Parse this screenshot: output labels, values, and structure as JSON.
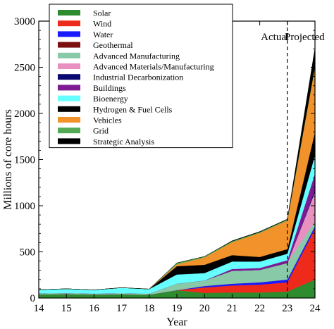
{
  "chart_data": {
    "type": "area",
    "stacked": true,
    "xlabel": "Year",
    "ylabel": "Millions of core hours",
    "x": [
      14,
      15,
      16,
      17,
      18,
      19,
      20,
      21,
      22,
      23,
      24
    ],
    "x_tick_labels": [
      "14",
      "15",
      "16",
      "17",
      "18",
      "19",
      "20",
      "21",
      "22",
      "23",
      "24"
    ],
    "ylim": [
      0,
      3000
    ],
    "xlim": [
      14,
      24
    ],
    "y_ticks": [
      0,
      500,
      1000,
      1500,
      2000,
      2500,
      3000
    ],
    "y_tick_labels": [
      "0",
      "500",
      "1000",
      "1500",
      "2000",
      "2500",
      "3000"
    ],
    "annotations": [
      {
        "text": "Actual",
        "x": 22.55
      },
      {
        "text": "Projected",
        "x": 23.55
      }
    ],
    "divider_x": 23,
    "legend_position": "top-left",
    "series": [
      {
        "name": "Solar",
        "color": "#2e8b2e",
        "values": [
          40,
          42,
          38,
          40,
          35,
          85,
          55,
          60,
          60,
          70,
          200
        ]
      },
      {
        "name": "Wind",
        "color": "#ee2a1a",
        "values": [
          0,
          0,
          0,
          0,
          0,
          0,
          60,
          75,
          85,
          100,
          550
        ]
      },
      {
        "name": "Water",
        "color": "#1a1aff",
        "values": [
          0,
          0,
          0,
          0,
          0,
          0,
          15,
          20,
          25,
          30,
          30
        ]
      },
      {
        "name": "Geothermal",
        "color": "#7a1010",
        "values": [
          0,
          0,
          0,
          0,
          0,
          0,
          0,
          0,
          0,
          0,
          0
        ]
      },
      {
        "name": "Advanced Manufacturing",
        "color": "#88c9a8",
        "values": [
          10,
          12,
          10,
          12,
          12,
          70,
          60,
          140,
          135,
          180,
          50
        ]
      },
      {
        "name": "Advanced Materials/Manufacturing",
        "color": "#e890c0",
        "values": [
          0,
          0,
          0,
          0,
          0,
          0,
          0,
          0,
          0,
          0,
          320
        ]
      },
      {
        "name": "Industrial Decarbonization",
        "color": "#0a0a70",
        "values": [
          0,
          0,
          0,
          0,
          0,
          0,
          0,
          0,
          0,
          0,
          20
        ]
      },
      {
        "name": "Buildings",
        "color": "#7e1a92",
        "values": [
          0,
          0,
          0,
          0,
          0,
          0,
          0,
          20,
          20,
          30,
          180
        ]
      },
      {
        "name": "Bioenergy",
        "color": "#66ffff",
        "values": [
          40,
          46,
          40,
          60,
          50,
          100,
          80,
          80,
          70,
          70,
          200
        ]
      },
      {
        "name": "Hydrogen & Fuel Cells",
        "color": "#000000",
        "values": [
          0,
          0,
          0,
          0,
          0,
          90,
          90,
          70,
          50,
          50,
          250
        ]
      },
      {
        "name": "Vehicles",
        "color": "#f2922a",
        "values": [
          0,
          0,
          0,
          0,
          0,
          20,
          80,
          140,
          260,
          310,
          700
        ]
      },
      {
        "name": "Grid",
        "color": "#55aa55",
        "values": [
          0,
          0,
          0,
          0,
          0,
          15,
          10,
          10,
          10,
          10,
          10
        ]
      },
      {
        "name": "Strategic Analysis",
        "color": "#000000",
        "values": [
          0,
          0,
          0,
          0,
          0,
          0,
          0,
          5,
          5,
          5,
          200
        ]
      }
    ]
  }
}
